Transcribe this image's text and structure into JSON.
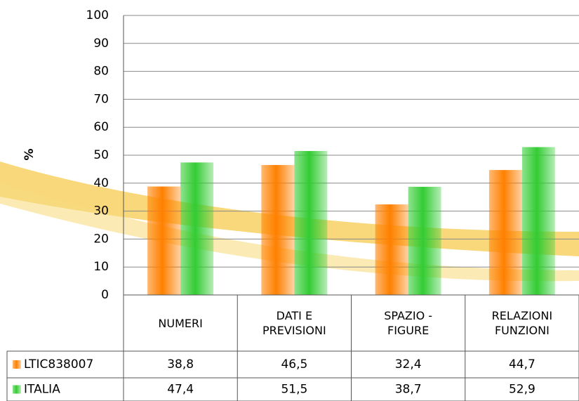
{
  "chart_data": {
    "type": "bar",
    "y_label": "%",
    "categories": [
      "NUMERI",
      "DATI E PREVISIONI",
      "SPAZIO - FIGURE",
      "RELAZIONI FUNZIONI"
    ],
    "series": [
      {
        "name": "LTIC838007",
        "color": "#ff8000",
        "values": [
          38.8,
          46.5,
          32.4,
          44.7
        ],
        "value_labels": [
          "38,8",
          "46,5",
          "32,4",
          "44,7"
        ]
      },
      {
        "name": "ITALIA",
        "color": "#33cc33",
        "values": [
          47.4,
          51.5,
          38.7,
          52.9
        ],
        "value_labels": [
          "47,4",
          "51,5",
          "38,7",
          "52,9"
        ]
      }
    ],
    "ylim": [
      0,
      100
    ],
    "yticks": [
      0,
      10,
      20,
      30,
      40,
      50,
      60,
      70,
      80,
      90,
      100
    ],
    "grid": true
  }
}
